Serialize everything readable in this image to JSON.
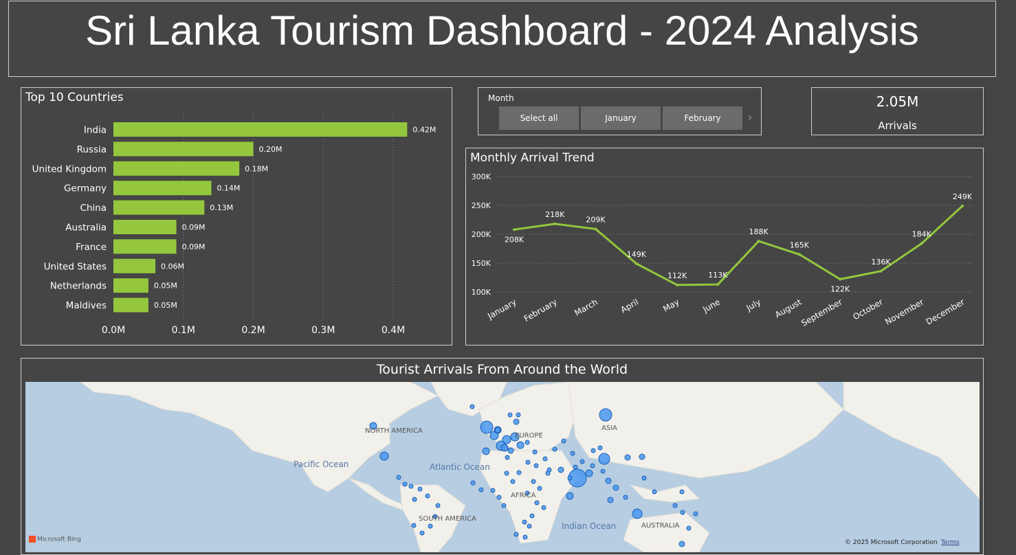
{
  "header": {
    "title": "Sri Lanka Tourism Dashboard - 2024 Analysis"
  },
  "top_countries": {
    "title": "Top 10 Countries",
    "chart_data": {
      "type": "bar",
      "orientation": "horizontal",
      "categories": [
        "India",
        "Russia",
        "United Kingdom",
        "Germany",
        "China",
        "Australia",
        "France",
        "United States",
        "Netherlands",
        "Maldives"
      ],
      "values": [
        0.42,
        0.2,
        0.18,
        0.14,
        0.13,
        0.09,
        0.09,
        0.06,
        0.05,
        0.05
      ],
      "value_labels": [
        "0.42M",
        "0.20M",
        "0.18M",
        "0.14M",
        "0.13M",
        "0.09M",
        "0.09M",
        "0.06M",
        "0.05M",
        "0.05M"
      ],
      "xlim": [
        0,
        0.44
      ],
      "xticks": [
        0,
        0.1,
        0.2,
        0.3,
        0.4
      ],
      "xtick_labels": [
        "0.0M",
        "0.1M",
        "0.2M",
        "0.3M",
        "0.4M"
      ],
      "color": "#94c73d",
      "grid": true
    }
  },
  "slicer": {
    "label": "Month",
    "options": [
      "Select all",
      "January",
      "February"
    ]
  },
  "kpi": {
    "value": "2.05M",
    "label": "Arrivals"
  },
  "monthly_trend": {
    "title": "Monthly Arrival Trend",
    "chart_data": {
      "type": "line",
      "categories": [
        "January",
        "February",
        "March",
        "April",
        "May",
        "June",
        "July",
        "August",
        "September",
        "October",
        "November",
        "December"
      ],
      "values": [
        208,
        218,
        209,
        149,
        112,
        113,
        188,
        165,
        122,
        136,
        184,
        249
      ],
      "value_labels": [
        "208K",
        "218K",
        "209K",
        "149K",
        "112K",
        "113K",
        "188K",
        "165K",
        "122K",
        "136K",
        "184K",
        "249K"
      ],
      "ylim": [
        100,
        300
      ],
      "yticks": [
        100,
        150,
        200,
        250,
        300
      ],
      "ytick_labels": [
        "100K",
        "150K",
        "200K",
        "250K",
        "300K"
      ],
      "color": "#94c73d",
      "grid": true
    }
  },
  "world_map": {
    "title": "Tourist Arrivals From Around the World",
    "labels": [
      "NORTH AMERICA",
      "EUROPE",
      "ASIA",
      "AFRICA",
      "SOUTH AMERICA",
      "AUSTRALIA",
      "Pacific Ocean",
      "Atlantic Ocean",
      "Indian Ocean"
    ],
    "attribution": "Microsoft Bing",
    "copyright": "© 2025 Microsoft Corporation",
    "terms": "Terms",
    "colors": {
      "water": "#b6cde2",
      "land": "#f2f0ea",
      "bubble": "#4a98f0",
      "bubble_stroke": "#1a5fb4"
    }
  }
}
